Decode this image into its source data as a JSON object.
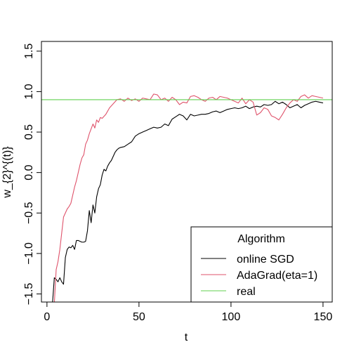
{
  "chart_data": {
    "type": "line",
    "title": "",
    "xlabel": "t",
    "ylabel": "w_{2}^{(t)}",
    "xlim": [
      -3,
      155
    ],
    "ylim": [
      -1.6,
      1.62
    ],
    "x_ticks": [
      0,
      50,
      100,
      150
    ],
    "y_ticks": [
      -1.5,
      -1.0,
      -0.5,
      0.0,
      0.5,
      1.0,
      1.5
    ],
    "x_tick_labels": [
      "0",
      "50",
      "100",
      "150"
    ],
    "y_tick_labels": [
      "−1.5",
      "−1.0",
      "−0.5",
      "0.0",
      "0.5",
      "1.0",
      "1.5"
    ],
    "grid": false,
    "legend": {
      "title": "Algorithm",
      "position": "bottom-right",
      "entries": [
        "online SGD",
        "AdaGrad(eta=1)",
        "real"
      ]
    },
    "series": [
      {
        "name": "online SGD",
        "color": "#000000",
        "x": [
          3,
          4,
          5,
          6,
          7,
          8,
          9,
          10,
          11,
          12,
          13,
          14,
          15,
          16,
          17,
          18,
          19,
          20,
          21,
          22,
          23,
          24,
          25,
          26,
          27,
          28,
          29,
          30,
          31,
          32,
          33,
          34,
          35,
          36,
          37,
          38,
          39,
          40,
          42,
          44,
          46,
          48,
          50,
          52,
          54,
          56,
          58,
          60,
          62,
          64,
          66,
          68,
          70,
          72,
          74,
          76,
          78,
          80,
          82,
          84,
          86,
          88,
          90,
          92,
          94,
          96,
          98,
          100,
          102,
          104,
          106,
          108,
          110,
          112,
          114,
          116,
          118,
          120,
          122,
          124,
          126,
          128,
          130,
          132,
          134,
          136,
          138,
          140,
          142,
          144,
          146,
          148,
          150
        ],
        "y": [
          -1.62,
          -1.3,
          -1.32,
          -1.35,
          -1.3,
          -1.35,
          -1.38,
          -1.05,
          -0.95,
          -0.92,
          -0.93,
          -0.9,
          -0.95,
          -0.84,
          -0.84,
          -0.85,
          -0.86,
          -0.86,
          -0.85,
          -0.72,
          -0.47,
          -0.62,
          -0.4,
          -0.5,
          -0.3,
          -0.2,
          -0.15,
          -0.03,
          0.04,
          0.02,
          0.08,
          0.12,
          0.15,
          0.2,
          0.25,
          0.28,
          0.3,
          0.31,
          0.32,
          0.35,
          0.38,
          0.45,
          0.48,
          0.5,
          0.52,
          0.54,
          0.56,
          0.55,
          0.56,
          0.6,
          0.58,
          0.66,
          0.69,
          0.72,
          0.7,
          0.65,
          0.72,
          0.7,
          0.71,
          0.72,
          0.72,
          0.73,
          0.75,
          0.76,
          0.74,
          0.76,
          0.78,
          0.79,
          0.8,
          0.79,
          0.8,
          0.82,
          0.79,
          0.81,
          0.82,
          0.81,
          0.84,
          0.83,
          0.84,
          0.88,
          0.85,
          0.87,
          0.84,
          0.8,
          0.82,
          0.84,
          0.8,
          0.83,
          0.85,
          0.87,
          0.88,
          0.87,
          0.86
        ]
      },
      {
        "name": "AdaGrad(eta=1)",
        "color": "#DF536B",
        "x": [
          4,
          5,
          6,
          7,
          8,
          9,
          10,
          11,
          12,
          13,
          14,
          15,
          16,
          17,
          18,
          19,
          20,
          21,
          22,
          23,
          24,
          25,
          26,
          27,
          28,
          29,
          30,
          32,
          34,
          36,
          38,
          40,
          42,
          44,
          46,
          48,
          50,
          52,
          54,
          56,
          58,
          60,
          62,
          64,
          66,
          68,
          70,
          72,
          74,
          76,
          78,
          80,
          82,
          84,
          86,
          88,
          90,
          92,
          94,
          96,
          98,
          100,
          102,
          104,
          106,
          108,
          110,
          112,
          114,
          116,
          118,
          120,
          122,
          124,
          126,
          128,
          130,
          132,
          134,
          136,
          138,
          140,
          142,
          144,
          146,
          148,
          150
        ],
        "y": [
          -1.62,
          -1.2,
          -1.1,
          -0.95,
          -0.75,
          -0.55,
          -0.5,
          -0.45,
          -0.42,
          -0.38,
          -0.28,
          -0.18,
          -0.1,
          0.0,
          0.1,
          0.18,
          0.22,
          0.35,
          0.4,
          0.48,
          0.54,
          0.6,
          0.55,
          0.65,
          0.62,
          0.68,
          0.67,
          0.72,
          0.8,
          0.85,
          0.9,
          0.91,
          0.88,
          0.92,
          0.89,
          0.91,
          0.88,
          0.92,
          0.91,
          0.9,
          0.97,
          0.96,
          0.9,
          0.92,
          0.88,
          0.93,
          0.9,
          0.84,
          0.87,
          0.86,
          0.94,
          0.95,
          0.93,
          0.9,
          0.88,
          0.92,
          0.93,
          0.9,
          0.94,
          0.93,
          0.92,
          0.9,
          0.88,
          0.86,
          0.92,
          0.85,
          0.9,
          0.87,
          0.71,
          0.74,
          0.8,
          0.78,
          0.7,
          0.68,
          0.65,
          0.72,
          0.8,
          0.86,
          0.9,
          0.88,
          0.94,
          0.96,
          0.92,
          0.95,
          0.94,
          0.93,
          0.92
        ]
      },
      {
        "name": "real",
        "color": "#61D04F",
        "x": [
          -3,
          155
        ],
        "y": [
          0.9,
          0.9
        ]
      }
    ]
  }
}
